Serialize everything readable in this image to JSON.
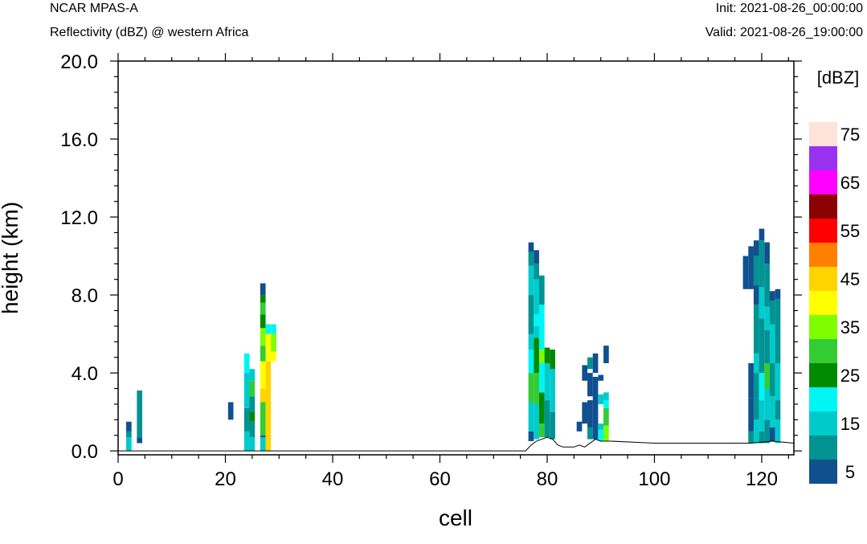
{
  "header": {
    "left_top": "NCAR MPAS-A",
    "left_bottom": "Reflectivity (dBZ) @ western Africa",
    "right_top": "Init: 2021-08-26_00:00:00",
    "right_bottom": "Valid: 2021-08-26_19:00:00"
  },
  "chart_data": {
    "type": "heatmap",
    "title": "Reflectivity (dBZ) @ western Africa",
    "xlabel": "cell",
    "ylabel": "height (km)",
    "xlim": [
      0,
      126
    ],
    "ylim": [
      -0.2,
      20.0
    ],
    "x_ticks": [
      "0",
      "20",
      "40",
      "60",
      "80",
      "100",
      "120"
    ],
    "x_tick_values": [
      0,
      20,
      40,
      60,
      80,
      100,
      120
    ],
    "y_ticks": [
      "0.0",
      "4.0",
      "8.0",
      "12.0",
      "16.0",
      "20.0"
    ],
    "y_tick_values": [
      0,
      4,
      8,
      12,
      16,
      20
    ],
    "colorbar": {
      "title": "[dBZ]",
      "labels": [
        "5",
        "15",
        "25",
        "35",
        "45",
        "55",
        "65",
        "75"
      ],
      "levels": [
        5,
        10,
        15,
        20,
        25,
        30,
        35,
        40,
        45,
        50,
        55,
        60,
        65,
        70,
        75,
        80
      ],
      "colors": [
        "#11508f",
        "#019292",
        "#00cbcb",
        "#00f5f5",
        "#008a00",
        "#33cc33",
        "#7ffe00",
        "#ffff00",
        "#ffd400",
        "#ff7f00",
        "#ff0000",
        "#8b0000",
        "#ff00ff",
        "#9932f0",
        "#ffe2d9"
      ]
    },
    "terrain": [
      [
        0,
        0
      ],
      [
        76,
        0
      ],
      [
        77,
        0.3
      ],
      [
        78,
        0.5
      ],
      [
        79,
        0.6
      ],
      [
        80,
        0.7
      ],
      [
        81,
        0.6
      ],
      [
        82,
        0.3
      ],
      [
        83,
        0.2
      ],
      [
        85,
        0.2
      ],
      [
        86,
        0.3
      ],
      [
        87,
        0.2
      ],
      [
        88,
        0.4
      ],
      [
        89,
        0.6
      ],
      [
        90,
        0.5
      ],
      [
        92,
        0.5
      ],
      [
        96,
        0.45
      ],
      [
        100,
        0.4
      ],
      [
        110,
        0.4
      ],
      [
        118,
        0.4
      ],
      [
        120,
        0.45
      ],
      [
        122,
        0.5
      ],
      [
        124,
        0.45
      ],
      [
        126,
        0.4
      ]
    ],
    "columns": [
      {
        "cell": 2,
        "segments": [
          [
            0,
            0.7,
            15
          ],
          [
            0.7,
            1.0,
            10
          ],
          [
            1.0,
            1.5,
            5
          ]
        ]
      },
      {
        "cell": 4,
        "segments": [
          [
            0.4,
            0.7,
            5
          ],
          [
            0.7,
            3.1,
            10
          ]
        ]
      },
      {
        "cell": 21,
        "segments": [
          [
            1.6,
            2.5,
            5
          ]
        ]
      },
      {
        "cell": 24,
        "segments": [
          [
            0,
            1.0,
            15
          ],
          [
            1.0,
            2.2,
            10
          ],
          [
            2.2,
            4.0,
            15
          ],
          [
            4.0,
            5.0,
            20
          ]
        ]
      },
      {
        "cell": 25,
        "segments": [
          [
            0,
            0.7,
            15
          ],
          [
            0.7,
            1.5,
            10
          ],
          [
            1.5,
            2.0,
            25
          ],
          [
            2.0,
            2.8,
            10
          ],
          [
            2.8,
            3.6,
            30
          ],
          [
            3.6,
            4.2,
            15
          ]
        ]
      },
      {
        "cell": 27,
        "segments": [
          [
            0,
            0.7,
            15
          ],
          [
            0.7,
            0.8,
            5
          ],
          [
            0.8,
            2.5,
            30
          ],
          [
            2.5,
            3.2,
            45
          ],
          [
            3.2,
            4.6,
            40
          ],
          [
            4.6,
            5.4,
            30
          ],
          [
            5.4,
            6.3,
            35
          ],
          [
            6.3,
            7.0,
            25
          ],
          [
            7.0,
            7.6,
            30
          ],
          [
            7.6,
            8.0,
            25
          ],
          [
            8.0,
            8.6,
            5
          ]
        ]
      },
      {
        "cell": 28,
        "segments": [
          [
            0,
            4.6,
            45
          ],
          [
            4.6,
            6.0,
            40
          ],
          [
            6.0,
            6.5,
            20
          ]
        ]
      },
      {
        "cell": 29,
        "segments": [
          [
            4.6,
            5.1,
            40
          ],
          [
            5.1,
            6.0,
            35
          ],
          [
            6.0,
            6.5,
            20
          ]
        ]
      },
      {
        "cell": 77,
        "segments": [
          [
            0.5,
            1.0,
            5
          ],
          [
            1.0,
            2.5,
            15
          ],
          [
            2.5,
            4.0,
            30
          ],
          [
            4.0,
            5.2,
            20
          ],
          [
            5.2,
            6.0,
            15
          ],
          [
            6.0,
            8.0,
            10
          ],
          [
            8.0,
            9.5,
            15
          ],
          [
            9.5,
            10.2,
            10
          ],
          [
            10.2,
            10.7,
            5
          ]
        ]
      },
      {
        "cell": 78,
        "segments": [
          [
            0.6,
            2.4,
            15
          ],
          [
            2.4,
            4.0,
            30
          ],
          [
            4.0,
            5.8,
            25
          ],
          [
            5.8,
            6.4,
            15
          ],
          [
            6.4,
            7.0,
            20
          ],
          [
            7.0,
            8.8,
            15
          ],
          [
            8.8,
            9.6,
            10
          ],
          [
            9.6,
            10.3,
            5
          ]
        ]
      },
      {
        "cell": 79,
        "segments": [
          [
            0.7,
            1.4,
            30
          ],
          [
            1.4,
            3.0,
            25
          ],
          [
            3.0,
            4.5,
            20
          ],
          [
            4.5,
            5.2,
            35
          ],
          [
            5.2,
            7.5,
            20
          ],
          [
            7.5,
            9.0,
            10
          ]
        ]
      },
      {
        "cell": 80,
        "segments": [
          [
            0.7,
            2.6,
            10
          ],
          [
            2.6,
            4.5,
            15
          ],
          [
            4.5,
            5.3,
            25
          ]
        ]
      },
      {
        "cell": 81,
        "segments": [
          [
            0.6,
            2.0,
            10
          ],
          [
            2.0,
            4.2,
            15
          ],
          [
            4.2,
            5.2,
            25
          ]
        ]
      },
      {
        "cell": 86,
        "segments": [
          [
            1.0,
            1.5,
            5
          ]
        ]
      },
      {
        "cell": 87,
        "segments": [
          [
            1.4,
            2.5,
            5
          ],
          [
            3.6,
            4.4,
            5
          ]
        ]
      },
      {
        "cell": 88,
        "segments": [
          [
            0.6,
            1.2,
            10
          ],
          [
            1.2,
            2.6,
            5
          ],
          [
            2.8,
            4.0,
            5
          ],
          [
            4.2,
            4.8,
            10
          ]
        ]
      },
      {
        "cell": 89,
        "segments": [
          [
            0.6,
            1.2,
            5
          ],
          [
            1.2,
            2.5,
            5
          ],
          [
            2.5,
            3.8,
            5
          ],
          [
            4.0,
            5.0,
            5
          ]
        ]
      },
      {
        "cell": 90,
        "segments": [
          [
            0.5,
            1.1,
            20
          ],
          [
            1.1,
            1.4,
            15
          ],
          [
            2.4,
            2.9,
            15
          ],
          [
            3.6,
            3.9,
            5
          ]
        ]
      },
      {
        "cell": 91,
        "segments": [
          [
            0.5,
            1.3,
            35
          ],
          [
            1.3,
            2.2,
            30
          ],
          [
            2.2,
            2.6,
            20
          ],
          [
            2.6,
            3.0,
            15
          ],
          [
            4.5,
            5.4,
            5
          ]
        ]
      },
      {
        "cell": 117,
        "segments": [
          [
            8.3,
            10.0,
            5
          ]
        ]
      },
      {
        "cell": 118,
        "segments": [
          [
            0.4,
            1.0,
            10
          ],
          [
            1.0,
            2.7,
            5
          ],
          [
            2.7,
            4.5,
            5
          ],
          [
            8.3,
            10.5,
            5
          ]
        ]
      },
      {
        "cell": 119,
        "segments": [
          [
            0.4,
            1.6,
            15
          ],
          [
            1.6,
            4.0,
            10
          ],
          [
            4.0,
            5.0,
            15
          ],
          [
            5.0,
            7.5,
            10
          ],
          [
            7.5,
            8.5,
            5
          ],
          [
            8.5,
            10.0,
            10
          ],
          [
            10.0,
            10.8,
            5
          ]
        ]
      },
      {
        "cell": 120,
        "segments": [
          [
            0.4,
            1.0,
            10
          ],
          [
            1.0,
            2.6,
            15
          ],
          [
            2.6,
            4.0,
            20
          ],
          [
            4.0,
            5.2,
            10
          ],
          [
            5.2,
            6.8,
            10
          ],
          [
            6.8,
            8.4,
            15
          ],
          [
            8.4,
            10.8,
            10
          ],
          [
            10.8,
            11.4,
            5
          ]
        ]
      },
      {
        "cell": 121,
        "segments": [
          [
            0.4,
            1.6,
            10
          ],
          [
            1.6,
            3.2,
            15
          ],
          [
            3.2,
            4.5,
            30
          ],
          [
            4.5,
            6.2,
            10
          ],
          [
            6.2,
            7.4,
            15
          ],
          [
            7.4,
            9.6,
            10
          ],
          [
            9.6,
            10.7,
            5
          ]
        ]
      },
      {
        "cell": 122,
        "segments": [
          [
            0.5,
            1.2,
            5
          ],
          [
            1.2,
            2.8,
            15
          ],
          [
            2.8,
            4.5,
            10
          ],
          [
            4.5,
            6.5,
            15
          ],
          [
            6.5,
            7.7,
            10
          ],
          [
            7.7,
            8.2,
            5
          ]
        ]
      },
      {
        "cell": 123,
        "segments": [
          [
            0.4,
            1.6,
            15
          ],
          [
            1.6,
            2.6,
            10
          ],
          [
            2.6,
            4.5,
            15
          ],
          [
            4.5,
            6.6,
            10
          ],
          [
            6.6,
            7.8,
            10
          ],
          [
            7.8,
            8.3,
            5
          ]
        ]
      }
    ]
  }
}
